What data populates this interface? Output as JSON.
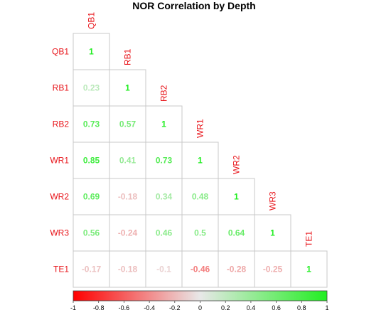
{
  "chart_data": {
    "type": "heatmap",
    "title": "NOR Correlation by Depth",
    "variables": [
      "QB1",
      "RB1",
      "RB2",
      "WR1",
      "WR2",
      "WR3",
      "TE1"
    ],
    "matrix_lower": [
      [
        1
      ],
      [
        0.23,
        1
      ],
      [
        0.73,
        0.57,
        1
      ],
      [
        0.85,
        0.41,
        0.73,
        1
      ],
      [
        0.69,
        -0.18,
        0.34,
        0.48,
        1
      ],
      [
        0.56,
        -0.24,
        0.46,
        0.5,
        0.64,
        1
      ],
      [
        -0.17,
        -0.18,
        -0.1,
        -0.46,
        -0.28,
        -0.25,
        1
      ]
    ],
    "display_values": [
      [
        "1"
      ],
      [
        "0.23",
        "1"
      ],
      [
        "0.73",
        "0.57",
        "1"
      ],
      [
        "0.85",
        "0.41",
        "0.73",
        "1"
      ],
      [
        "0.69",
        "-0.18",
        "0.34",
        "0.48",
        "1"
      ],
      [
        "0.56",
        "-0.24",
        "0.46",
        "0.5",
        "0.64",
        "1"
      ],
      [
        "-0.17",
        "-0.18",
        "-0.1",
        "-0.46",
        "-0.28",
        "-0.25",
        "1"
      ]
    ],
    "colorbar": {
      "range": [
        -1,
        1
      ],
      "ticks": [
        "-1",
        "-0.8",
        "-0.6",
        "-0.4",
        "-0.2",
        "0",
        "0.2",
        "0.4",
        "0.6",
        "0.8",
        "1"
      ],
      "colors": {
        "negative": "#ff0000",
        "mid": "#e8e8e8",
        "positive": "#22ee22"
      },
      "placement": "bottom"
    },
    "label_color": "#e8141a",
    "grid": true
  }
}
